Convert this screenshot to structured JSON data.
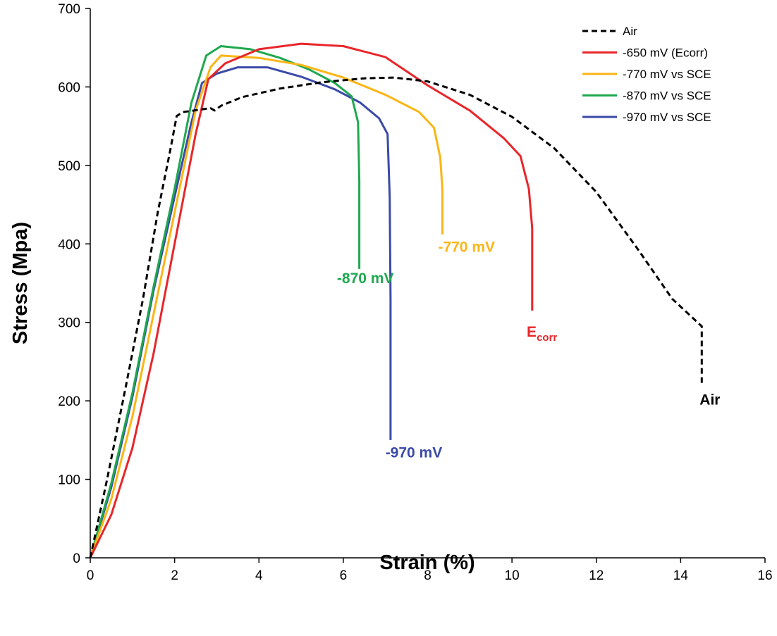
{
  "chart_data": {
    "type": "line",
    "xlabel": "Strain (%)",
    "ylabel": "Stress  (Mpa)",
    "xlim": [
      0,
      16
    ],
    "ylim": [
      0,
      700
    ],
    "x_ticks": [
      0,
      2,
      4,
      6,
      8,
      10,
      12,
      14,
      16
    ],
    "y_ticks": [
      0,
      100,
      200,
      300,
      400,
      500,
      600,
      700
    ],
    "grid": false,
    "legend_position": "top-right",
    "series": [
      {
        "name": "Air",
        "color": "#000000",
        "dash": true,
        "points": [
          [
            0,
            0
          ],
          [
            0.4,
            100
          ],
          [
            0.85,
            220
          ],
          [
            1.25,
            330
          ],
          [
            1.6,
            440
          ],
          [
            1.9,
            520
          ],
          [
            2.05,
            563
          ],
          [
            2.2,
            568
          ],
          [
            2.6,
            571
          ],
          [
            2.85,
            573
          ],
          [
            2.95,
            570
          ],
          [
            3.1,
            576
          ],
          [
            3.6,
            587
          ],
          [
            4.5,
            598
          ],
          [
            5.5,
            606
          ],
          [
            6.5,
            611
          ],
          [
            7.2,
            612
          ],
          [
            8.0,
            607
          ],
          [
            9.0,
            590
          ],
          [
            10.0,
            562
          ],
          [
            11.0,
            522
          ],
          [
            12.0,
            466
          ],
          [
            13.0,
            392
          ],
          [
            13.8,
            330
          ],
          [
            14.5,
            295
          ],
          [
            14.5,
            220
          ]
        ]
      },
      {
        "name": "-650 mV (Ecorr)",
        "color": "#e8262a",
        "dash": false,
        "points": [
          [
            0,
            0
          ],
          [
            0.5,
            55
          ],
          [
            1.0,
            140
          ],
          [
            1.5,
            260
          ],
          [
            2.0,
            400
          ],
          [
            2.5,
            540
          ],
          [
            2.8,
            610
          ],
          [
            3.2,
            630
          ],
          [
            4.0,
            648
          ],
          [
            5.0,
            655
          ],
          [
            6.0,
            652
          ],
          [
            7.0,
            638
          ],
          [
            8.0,
            602
          ],
          [
            9.0,
            570
          ],
          [
            9.8,
            535
          ],
          [
            10.2,
            512
          ],
          [
            10.4,
            470
          ],
          [
            10.48,
            420
          ],
          [
            10.48,
            315
          ]
        ]
      },
      {
        "name": "-770 mV vs SCE",
        "color": "#fbb515",
        "dash": false,
        "points": [
          [
            0,
            0
          ],
          [
            0.5,
            75
          ],
          [
            1.0,
            180
          ],
          [
            1.5,
            310
          ],
          [
            2.0,
            440
          ],
          [
            2.5,
            570
          ],
          [
            2.85,
            625
          ],
          [
            3.1,
            640
          ],
          [
            4.0,
            637
          ],
          [
            5.0,
            628
          ],
          [
            6.0,
            612
          ],
          [
            7.0,
            590
          ],
          [
            7.8,
            568
          ],
          [
            8.15,
            548
          ],
          [
            8.3,
            510
          ],
          [
            8.35,
            470
          ],
          [
            8.35,
            412
          ]
        ]
      },
      {
        "name": "-870 mV vs SCE",
        "color": "#1fa84f",
        "dash": false,
        "points": [
          [
            0,
            0
          ],
          [
            0.5,
            95
          ],
          [
            1.0,
            210
          ],
          [
            1.5,
            345
          ],
          [
            2.0,
            470
          ],
          [
            2.4,
            580
          ],
          [
            2.75,
            640
          ],
          [
            3.1,
            652
          ],
          [
            3.8,
            648
          ],
          [
            4.5,
            637
          ],
          [
            5.2,
            622
          ],
          [
            5.8,
            605
          ],
          [
            6.2,
            588
          ],
          [
            6.35,
            555
          ],
          [
            6.38,
            480
          ],
          [
            6.38,
            368
          ]
        ]
      },
      {
        "name": "-970 mV vs SCE",
        "color": "#3b4aa8",
        "dash": false,
        "points": [
          [
            0,
            0
          ],
          [
            0.5,
            90
          ],
          [
            1.0,
            205
          ],
          [
            1.5,
            340
          ],
          [
            2.0,
            460
          ],
          [
            2.4,
            555
          ],
          [
            2.65,
            605
          ],
          [
            3.0,
            617
          ],
          [
            3.5,
            625
          ],
          [
            4.2,
            625
          ],
          [
            5.0,
            613
          ],
          [
            5.8,
            597
          ],
          [
            6.4,
            580
          ],
          [
            6.85,
            560
          ],
          [
            7.05,
            540
          ],
          [
            7.1,
            460
          ],
          [
            7.12,
            330
          ],
          [
            7.12,
            150
          ]
        ]
      }
    ],
    "annotations": [
      {
        "text": "-870 mV",
        "x": 5.85,
        "y": 350,
        "color": "#1fa84f"
      },
      {
        "text": "-770 mV",
        "x": 8.25,
        "y": 390,
        "color": "#fbb515"
      },
      {
        "text": "-970 mV",
        "x": 7.0,
        "y": 128,
        "color": "#3b4aa8"
      },
      {
        "text": "E",
        "sub": "corr",
        "x": 10.35,
        "y": 282,
        "color": "#e8262a"
      },
      {
        "text": "Air",
        "x": 14.45,
        "y": 195,
        "color": "#000000"
      }
    ]
  }
}
